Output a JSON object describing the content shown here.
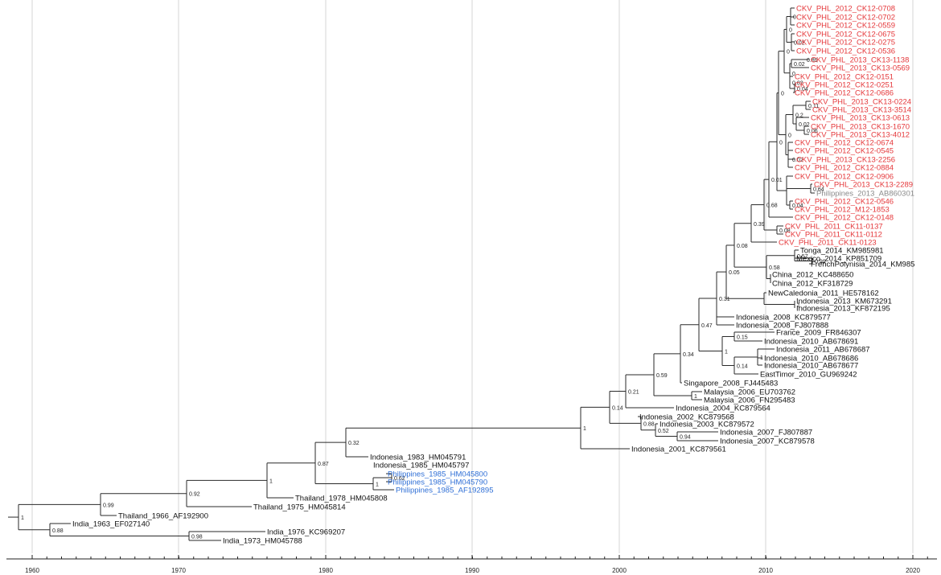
{
  "colors": {
    "black": "#111111",
    "red": "#e5383b",
    "blue": "#2f6fd6",
    "gray": "#8a8a8a"
  },
  "axis": {
    "ticks": [
      "1960",
      "1970",
      "1980",
      "1990",
      "2000",
      "2010",
      "2020"
    ]
  },
  "tips": [
    {
      "id": "t1",
      "label": "CKV_PHL_2012_CK12-0708",
      "color": "red"
    },
    {
      "id": "t2",
      "label": "CKV_PHL_2012_CK12-0702",
      "color": "red"
    },
    {
      "id": "t3",
      "label": "CKV_PHL_2012_CK12-0559",
      "color": "red"
    },
    {
      "id": "t4",
      "label": "CKV_PHL_2012_CK12-0675",
      "color": "red"
    },
    {
      "id": "t5",
      "label": "CKV_PHL_2012_CK12-0275",
      "color": "red"
    },
    {
      "id": "t6",
      "label": "CKV_PHL_2012_CK12-0536",
      "color": "red"
    },
    {
      "id": "t7",
      "label": "CKV_PHL_2013_CK13-1138",
      "color": "red"
    },
    {
      "id": "t8",
      "label": "CKV_PHL_2013_CK13-0569",
      "color": "red"
    },
    {
      "id": "t9",
      "label": "CKV_PHL_2012_CK12-0151",
      "color": "red"
    },
    {
      "id": "t10",
      "label": "CKV_PHL_2012_CK12-0251",
      "color": "red"
    },
    {
      "id": "t11",
      "label": "CKV_PHL_2012_CK12-0686",
      "color": "red"
    },
    {
      "id": "t12",
      "label": "CKV_PHL_2013_CK13-0224",
      "color": "red"
    },
    {
      "id": "t13",
      "label": "CKV_PHL_2013_CK13-3514",
      "color": "red"
    },
    {
      "id": "t14",
      "label": "CKV_PHL_2013_CK13-0613",
      "color": "red"
    },
    {
      "id": "t15",
      "label": "CKV_PHL_2013_CK13-1670",
      "color": "red"
    },
    {
      "id": "t16",
      "label": "CKV_PHL_2013_CK13-4012",
      "color": "red"
    },
    {
      "id": "t17",
      "label": "CKV_PHL_2012_CK12-0674",
      "color": "red"
    },
    {
      "id": "t18",
      "label": "CKV_PHL_2012_CK12-0545",
      "color": "red"
    },
    {
      "id": "t19",
      "label": "CKV_PHL_2013_CK13-2256",
      "color": "red"
    },
    {
      "id": "t20",
      "label": "CKV_PHL_2012_CK12-0884",
      "color": "red"
    },
    {
      "id": "t21",
      "label": "CKV_PHL_2012_CK12-0906",
      "color": "red"
    },
    {
      "id": "t22",
      "label": "CKV_PHL_2013_CK13-2289",
      "color": "red"
    },
    {
      "id": "t23",
      "label": "Philippines_2013_AB860301",
      "color": "gray"
    },
    {
      "id": "t24",
      "label": "CKV_PHL_2012_CK12-0546",
      "color": "red"
    },
    {
      "id": "t25",
      "label": "CKV_PHL_2012_M12-1853",
      "color": "red"
    },
    {
      "id": "t26",
      "label": "CKV_PHL_2012_CK12-0148",
      "color": "red"
    },
    {
      "id": "t27",
      "label": "CKV_PHL_2011_CK11-0137",
      "color": "red"
    },
    {
      "id": "t28",
      "label": "CKV_PHL_2011_CK11-0112",
      "color": "red"
    },
    {
      "id": "t29",
      "label": "CKV_PHL_2011_CK11-0123",
      "color": "red"
    },
    {
      "id": "t30",
      "label": "Tonga_2014_KM985981",
      "color": "black"
    },
    {
      "id": "t31",
      "label": "Mexico_2014_KP851709",
      "color": "black"
    },
    {
      "id": "t32",
      "label": "FrenchPolynisia_2014_KM985",
      "color": "black"
    },
    {
      "id": "t33",
      "label": "China_2012_KC488650",
      "color": "black"
    },
    {
      "id": "t34",
      "label": "China_2012_KF318729",
      "color": "black"
    },
    {
      "id": "t35",
      "label": "NewCaledonia_2011_HE578162",
      "color": "black"
    },
    {
      "id": "t36",
      "label": "Indonesia_2013_KM673291",
      "color": "black"
    },
    {
      "id": "t37",
      "label": "Indonesia_2013_KF872195",
      "color": "black"
    },
    {
      "id": "t38",
      "label": "Indonesia_2008_KC879577",
      "color": "black"
    },
    {
      "id": "t39",
      "label": "Indonesia_2008_FJ807888",
      "color": "black"
    },
    {
      "id": "t40",
      "label": "France_2009_FR846307",
      "color": "black"
    },
    {
      "id": "t41",
      "label": "Indonesia_2010_AB678691",
      "color": "black"
    },
    {
      "id": "t42",
      "label": "Indonesia_2011_AB678687",
      "color": "black"
    },
    {
      "id": "t43",
      "label": "Indonesia_2010_AB678686",
      "color": "black"
    },
    {
      "id": "t44",
      "label": "Indonesia_2010_AB678677",
      "color": "black"
    },
    {
      "id": "t45",
      "label": "EastTimor_2010_GU969242",
      "color": "black"
    },
    {
      "id": "t46",
      "label": "Singapore_2008_FJ445483",
      "color": "black"
    },
    {
      "id": "t47",
      "label": "Malaysia_2006_EU703762",
      "color": "black"
    },
    {
      "id": "t48",
      "label": "Malaysia_2006_FN295483",
      "color": "black"
    },
    {
      "id": "t49",
      "label": "Indonesia_2004_KC879564",
      "color": "black"
    },
    {
      "id": "t50",
      "label": "Indonesia_2002_KC879568",
      "color": "black"
    },
    {
      "id": "t51",
      "label": "Indonesia_2003_KC879572",
      "color": "black"
    },
    {
      "id": "t52",
      "label": "Indonesia_2007_FJ807887",
      "color": "black"
    },
    {
      "id": "t53",
      "label": "Indonesia_2007_KC879578",
      "color": "black"
    },
    {
      "id": "t54",
      "label": "Indonesia_2001_KC879561",
      "color": "black"
    },
    {
      "id": "t55",
      "label": "Indonesia_1983_HM045791",
      "color": "black"
    },
    {
      "id": "t56",
      "label": "Indonesia_1985_HM045797",
      "color": "black"
    },
    {
      "id": "t57",
      "label": "Philippines_1985_HM045800",
      "color": "blue"
    },
    {
      "id": "t58",
      "label": "Philippines_1985_HM045790",
      "color": "blue"
    },
    {
      "id": "t59",
      "label": "Philippines_1985_AF192895",
      "color": "blue"
    },
    {
      "id": "t60",
      "label": "Thailand_1978_HM045808",
      "color": "black"
    },
    {
      "id": "t61",
      "label": "Thailand_1975_HM045814",
      "color": "black"
    },
    {
      "id": "t62",
      "label": "Thailand_1966_AF192900",
      "color": "black"
    },
    {
      "id": "t63",
      "label": "India_1963_EF027140",
      "color": "black"
    },
    {
      "id": "t64",
      "label": "India_1976_KC969207",
      "color": "black"
    },
    {
      "id": "t65",
      "label": "India_1973_HM045788",
      "color": "black"
    }
  ],
  "supports": [
    {
      "id": "s_root",
      "value": "1"
    },
    {
      "id": "s_th",
      "value": "0.99"
    },
    {
      "id": "s_in",
      "value": "0.88"
    },
    {
      "id": "s_in2",
      "value": "0.98"
    },
    {
      "id": "s_a",
      "value": "0.92"
    },
    {
      "id": "s_b",
      "value": "1"
    },
    {
      "id": "s_c",
      "value": "0.87"
    },
    {
      "id": "s_d",
      "value": "0.32"
    },
    {
      "id": "s_e",
      "value": "0.5"
    },
    {
      "id": "s_ph",
      "value": "1"
    },
    {
      "id": "s_ph2",
      "value": "0.62"
    },
    {
      "id": "s_f",
      "value": "1"
    },
    {
      "id": "s_g",
      "value": "0.14"
    },
    {
      "id": "s_h",
      "value": "0.88"
    },
    {
      "id": "s_h2",
      "value": "0.52"
    },
    {
      "id": "s_h3",
      "value": "0.94"
    },
    {
      "id": "s_i",
      "value": "0.21"
    },
    {
      "id": "s_m",
      "value": "1"
    },
    {
      "id": "s_j",
      "value": "0.59"
    },
    {
      "id": "s_k",
      "value": "0.34"
    },
    {
      "id": "s_l",
      "value": "0.47"
    },
    {
      "id": "s_n",
      "value": "1"
    },
    {
      "id": "s_n2",
      "value": "0.15"
    },
    {
      "id": "s_n3",
      "value": "0.14"
    },
    {
      "id": "s_n4",
      "value": "1"
    },
    {
      "id": "s_o",
      "value": "0.31"
    },
    {
      "id": "s_p",
      "value": "0.05"
    },
    {
      "id": "s_q",
      "value": "0.08"
    },
    {
      "id": "s_q2",
      "value": "0.58"
    },
    {
      "id": "s_q3",
      "value": "0.57"
    },
    {
      "id": "s_q4",
      "value": "0.99"
    },
    {
      "id": "s_q5",
      "value": "1"
    },
    {
      "id": "s_r",
      "value": "0.39"
    },
    {
      "id": "s_s",
      "value": "0.68"
    },
    {
      "id": "s_s2",
      "value": "0.08"
    },
    {
      "id": "s_t",
      "value": "0.01"
    },
    {
      "id": "s_u",
      "value": "0"
    },
    {
      "id": "s_u2",
      "value": "0.64"
    },
    {
      "id": "s_u3",
      "value": "0.04"
    },
    {
      "id": "s_v",
      "value": "0"
    },
    {
      "id": "s_v2",
      "value": "0.02"
    },
    {
      "id": "s_w",
      "value": "0"
    },
    {
      "id": "s_w2",
      "value": "0.2"
    },
    {
      "id": "s_w3",
      "value": "0.11"
    },
    {
      "id": "s_w4",
      "value": "0.02"
    },
    {
      "id": "s_w5",
      "value": "0.06"
    },
    {
      "id": "s_x",
      "value": "0"
    },
    {
      "id": "s_x2",
      "value": "0.02"
    },
    {
      "id": "s_x3",
      "value": "0.89"
    },
    {
      "id": "s_x4",
      "value": "0"
    },
    {
      "id": "s_x5",
      "value": "0.02"
    },
    {
      "id": "s_x6",
      "value": "0.04"
    },
    {
      "id": "s_y",
      "value": "0"
    },
    {
      "id": "s_y2",
      "value": "0.02"
    },
    {
      "id": "s_y3",
      "value": "0"
    }
  ]
}
